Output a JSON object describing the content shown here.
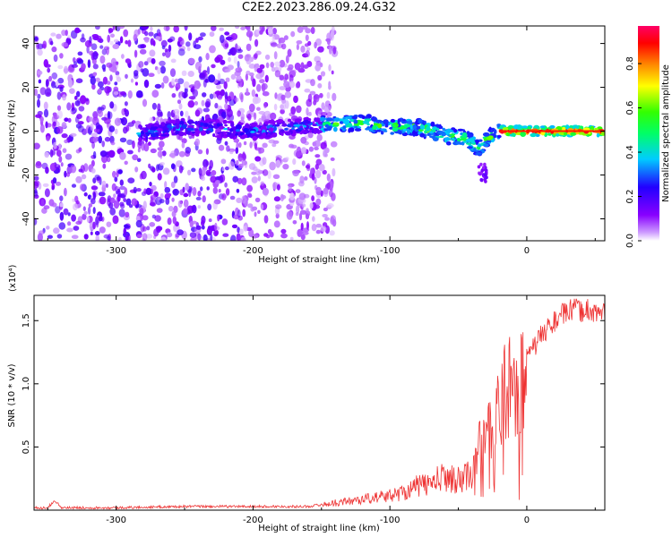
{
  "title": "C2E2.2023.286.09.24.G32",
  "chart_data": [
    {
      "type": "heatmap",
      "xlabel": "Height of straight line (km)",
      "ylabel": "Frequency (Hz)",
      "xlim": [
        -360,
        57
      ],
      "ylim": [
        -50,
        48
      ],
      "xticks": [
        -300,
        -200,
        -100,
        0
      ],
      "xtick_labels": [
        "-300",
        "-200",
        "-100",
        "0"
      ],
      "yticks": [
        -40,
        -20,
        0,
        20,
        40
      ],
      "ytick_labels": [
        "-40",
        "-20",
        "0",
        "20",
        "40"
      ],
      "colorbar": {
        "label": "Normalized spectral amplitude",
        "range": [
          0.0,
          0.97
        ],
        "ticks": [
          0.0,
          0.2,
          0.4,
          0.6,
          0.8
        ],
        "tick_labels": [
          "0.0",
          "0.2",
          "0.4",
          "0.6",
          "0.8"
        ],
        "colormap": "rainbow"
      },
      "ridge": {
        "description_points_x": [
          -280,
          -250,
          -200,
          -150,
          -120,
          -100,
          -80,
          -60,
          -45,
          -35,
          -28,
          -20,
          -10,
          0,
          20,
          57
        ],
        "description_points_y": [
          -1,
          2,
          0,
          3,
          4,
          2,
          2,
          -2,
          -3,
          -8,
          -3,
          0,
          0,
          0,
          0,
          0
        ],
        "peak_amplitude_x": [
          -20,
          57
        ]
      },
      "noise_region_x": [
        -360,
        -150
      ]
    },
    {
      "type": "line",
      "xlabel": "Height of straight line (km)",
      "ylabel": "SNR (10 * v/v)",
      "y_multiplier": "(x10⁴)",
      "xlim": [
        -360,
        57
      ],
      "ylim": [
        0,
        1.7
      ],
      "xticks": [
        -300,
        -200,
        -100,
        0
      ],
      "xtick_labels": [
        "-300",
        "-200",
        "-100",
        "0"
      ],
      "yticks": [
        0.5,
        1.0,
        1.5
      ],
      "ytick_labels": [
        "0.5",
        "1.0",
        "1.5"
      ],
      "color": "#ee3333",
      "series": [
        {
          "x": [
            -360,
            -350,
            -345,
            -340,
            -300,
            -250,
            -200,
            -160,
            -140,
            -120,
            -100,
            -90,
            -80,
            -70,
            -60,
            -50,
            -40,
            -35,
            -30,
            -25,
            -20,
            -15,
            -10,
            -5,
            0,
            5,
            10,
            15,
            20,
            25,
            30,
            35,
            40,
            45,
            50,
            57
          ],
          "y": [
            0.02,
            0.02,
            0.08,
            0.02,
            0.02,
            0.03,
            0.03,
            0.03,
            0.06,
            0.09,
            0.12,
            0.15,
            0.2,
            0.22,
            0.28,
            0.25,
            0.3,
            0.5,
            0.7,
            0.6,
            0.9,
            1.0,
            1.05,
            1.1,
            1.2,
            1.3,
            1.38,
            1.45,
            1.5,
            1.55,
            1.58,
            1.6,
            1.58,
            1.6,
            1.57,
            1.57
          ]
        }
      ]
    }
  ]
}
